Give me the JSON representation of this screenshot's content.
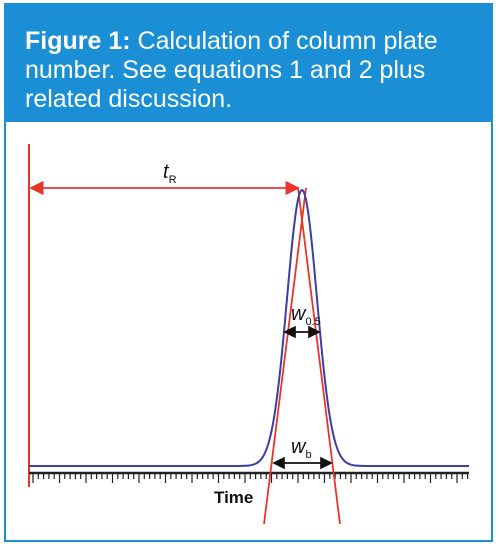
{
  "figure": {
    "label": "Figure 1:",
    "caption": "Calculation of column plate number. See equations 1 and 2 plus related discussion."
  },
  "diagram": {
    "retention_time_label": {
      "main": "t",
      "sub": "R"
    },
    "half_height_width_label": {
      "main": "w",
      "sub": "0.5"
    },
    "base_width_label": {
      "main": "w",
      "sub": "b"
    },
    "x_axis_label": "Time"
  },
  "colors": {
    "header_bg": "#1a8fd6",
    "peak": "#3a3fa8",
    "annotation": "#e8352a",
    "axis": "#222222"
  }
}
